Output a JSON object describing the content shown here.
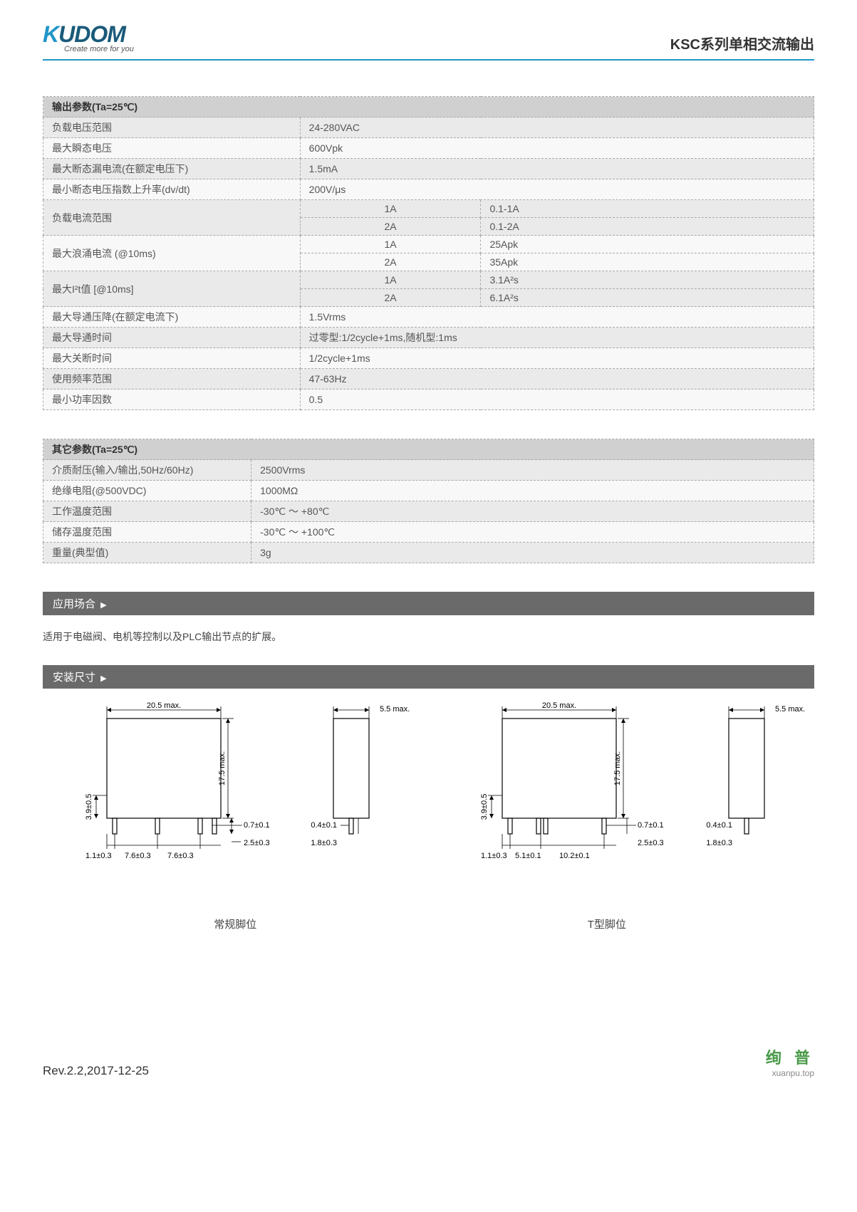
{
  "header": {
    "logo_text": "KUDOM",
    "logo_tagline": "Create more for you",
    "doc_title": "KSC系列单相交流输出"
  },
  "table1": {
    "header": "输出参数(Ta=25℃)",
    "rows": [
      {
        "label": "负载电压范围",
        "value": "24-280VAC",
        "rowClass": "odd"
      },
      {
        "label": "最大瞬态电压",
        "value": "600Vpk",
        "rowClass": "even"
      },
      {
        "label": "最大断态漏电流(在额定电压下)",
        "value": "1.5mA",
        "rowClass": "odd"
      },
      {
        "label": "最小断态电压指数上升率(dv/dt)",
        "value": "200V/μs",
        "rowClass": "even"
      }
    ],
    "multiRows": [
      {
        "label": "负载电流范围",
        "sub1": "1A",
        "val1": "0.1-1A",
        "sub2": "2A",
        "val2": "0.1-2A",
        "rowClass": "odd"
      },
      {
        "label": "最大浪涌电流 (@10ms)",
        "sub1": "1A",
        "val1": "25Apk",
        "sub2": "2A",
        "val2": "35Apk",
        "rowClass": "even"
      },
      {
        "label": "最大I²t值 [@10ms]",
        "sub1": "1A",
        "val1": "3.1A²s",
        "sub2": "2A",
        "val2": "6.1A²s",
        "rowClass": "odd"
      }
    ],
    "rows2": [
      {
        "label": "最大导通压降(在额定电流下)",
        "value": "1.5Vrms",
        "rowClass": "even"
      },
      {
        "label": "最大导通时间",
        "value": "过零型:1/2cycle+1ms,随机型:1ms",
        "rowClass": "odd"
      },
      {
        "label": "最大关断时间",
        "value": "1/2cycle+1ms",
        "rowClass": "even"
      },
      {
        "label": "使用频率范围",
        "value": "47-63Hz",
        "rowClass": "odd"
      },
      {
        "label": "最小功率因数",
        "value": "0.5",
        "rowClass": "even"
      }
    ]
  },
  "table2": {
    "header": "其它参数(Ta=25℃)",
    "rows": [
      {
        "label": "介质耐压(输入/输出,50Hz/60Hz)",
        "value": "2500Vrms",
        "rowClass": "odd"
      },
      {
        "label": "绝缘电阻(@500VDC)",
        "value": "1000MΩ",
        "rowClass": "even"
      },
      {
        "label": "工作温度范围",
        "value": "-30℃ ～ +80℃",
        "rowClass": "odd"
      },
      {
        "label": "储存温度范围",
        "value": "-30℃ ～ +100℃",
        "rowClass": "even"
      },
      {
        "label": "重量(典型值)",
        "value": "3g",
        "rowClass": "odd"
      }
    ]
  },
  "sections": {
    "application": "应用场合",
    "application_text": "适用于电磁阀、电机等控制以及PLC输出节点的扩展。",
    "dimensions": "安装尺寸"
  },
  "drawings": {
    "d1": {
      "width": "20.5 max.",
      "height": "17.5 max.",
      "left_h": "3.9±0.5",
      "pin_w": "0.7±0.1",
      "pin_h": "2.5±0.3",
      "s1": "1.1±0.3",
      "s2": "7.6±0.3",
      "s3": "7.6±0.3"
    },
    "d2": {
      "width": "5.5 max.",
      "pin_w": "0.4±0.1",
      "pin_h": "1.8±0.3"
    },
    "d3": {
      "width": "20.5 max.",
      "height": "17.5 max.",
      "left_h": "3.9±0.5",
      "pin_w": "0.7±0.1",
      "pin_h": "2.5±0.3",
      "s1": "1.1±0.3",
      "s2": "5.1±0.1",
      "s3": "10.2±0.1"
    },
    "d4": {
      "width": "5.5 max.",
      "pin_w": "0.4±0.1",
      "pin_h": "1.8±0.3"
    },
    "label_normal": "常规脚位",
    "label_t": "T型脚位"
  },
  "footer": {
    "revision": "Rev.2.2,2017-12-25",
    "brand_cn": "绚 普",
    "brand_url": "xuanpu.top"
  },
  "colors": {
    "header_rule": "#2196c8",
    "section_bar": "#6a6a6a",
    "table_header": "#d0d0d0",
    "row_odd": "#eaeaea",
    "row_even": "#f8f8f8",
    "brand_green": "#4a9a4a"
  }
}
